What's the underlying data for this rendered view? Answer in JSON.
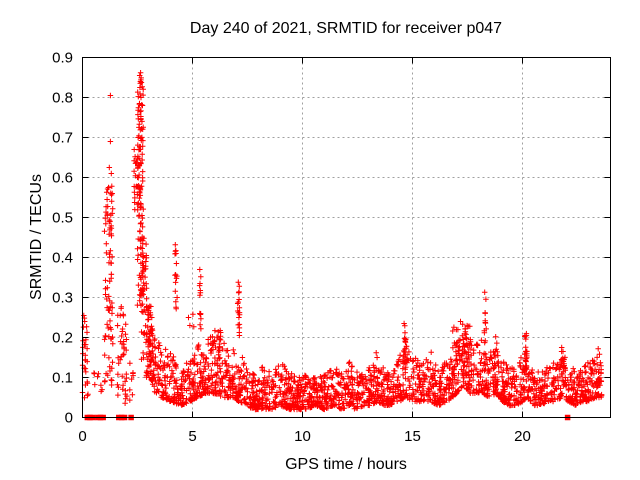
{
  "window": {
    "kind": "gnuplot-style plot image",
    "background": "#ffffff"
  },
  "chart_data": {
    "type": "scatter",
    "title": "Day 240 of 2021, SRMTID for receiver p047",
    "xlabel": "GPS time / hours",
    "ylabel": "SRMTID / TECUs",
    "xlim": [
      0,
      24
    ],
    "ylim": [
      0,
      0.9
    ],
    "xtick_values": [
      0,
      5,
      10,
      15,
      20
    ],
    "xtick_labels": [
      "0",
      "5",
      "10",
      "15",
      "20"
    ],
    "ytick_values": [
      0,
      0.1,
      0.2,
      0.3,
      0.4,
      0.5,
      0.6,
      0.7,
      0.8,
      0.9
    ],
    "ytick_labels": [
      "0",
      "0.1",
      "0.2",
      "0.3",
      "0.4",
      "0.5",
      "0.6",
      "0.7",
      "0.8",
      "0.9"
    ],
    "grid": true,
    "grid_color": "#a0a0a0",
    "frame_color": "#000000",
    "marker": {
      "shape": "plus",
      "color": "#ff0000",
      "size": 5.5
    },
    "zero_flag_marker": {
      "shape": "filled-square",
      "color": "#ff0000",
      "size": 5.5
    },
    "peak_point": {
      "t": 2.64,
      "value": 0.86
    },
    "zero_flag_times": [
      0.22,
      0.34,
      0.46,
      0.7,
      0.82,
      0.94,
      1.65,
      1.78,
      1.91,
      2.21,
      22.05
    ],
    "notable_points": [
      [
        0.06,
        0.255
      ],
      [
        0.1,
        0.24
      ],
      [
        1.27,
        0.805
      ],
      [
        1.27,
        0.69
      ],
      [
        1.22,
        0.625
      ],
      [
        1.31,
        0.61
      ],
      [
        1.18,
        0.575
      ],
      [
        1.35,
        0.56
      ],
      [
        1.12,
        0.545
      ],
      [
        2.6,
        0.855
      ],
      [
        2.64,
        0.862
      ],
      [
        2.63,
        0.84
      ],
      [
        2.61,
        0.825
      ],
      [
        2.66,
        0.8
      ],
      [
        2.59,
        0.785
      ],
      [
        2.62,
        0.765
      ],
      [
        2.65,
        0.745
      ],
      [
        2.35,
        0.67
      ],
      [
        2.39,
        0.652
      ],
      [
        3.0,
        0.275
      ],
      [
        3.08,
        0.262
      ],
      [
        3.15,
        0.25
      ],
      [
        4.22,
        0.432
      ],
      [
        4.25,
        0.41
      ],
      [
        4.27,
        0.385
      ],
      [
        4.23,
        0.357
      ],
      [
        4.3,
        0.3
      ],
      [
        4.26,
        0.272
      ],
      [
        4.82,
        0.25
      ],
      [
        4.88,
        0.23
      ],
      [
        5.02,
        0.258
      ],
      [
        5.06,
        0.227
      ],
      [
        5.33,
        0.37
      ],
      [
        5.34,
        0.335
      ],
      [
        5.36,
        0.312
      ],
      [
        5.33,
        0.26
      ],
      [
        5.38,
        0.222
      ],
      [
        7.08,
        0.338
      ],
      [
        7.1,
        0.312
      ],
      [
        7.12,
        0.295
      ],
      [
        7.09,
        0.262
      ],
      [
        7.11,
        0.25
      ],
      [
        7.13,
        0.205
      ],
      [
        13.35,
        0.162
      ],
      [
        13.39,
        0.15
      ],
      [
        14.62,
        0.235
      ],
      [
        14.66,
        0.212
      ],
      [
        14.7,
        0.196
      ],
      [
        14.73,
        0.178
      ],
      [
        15.85,
        0.163
      ],
      [
        17.18,
        0.24
      ],
      [
        17.28,
        0.233
      ],
      [
        17.4,
        0.222
      ],
      [
        18.28,
        0.313
      ],
      [
        18.3,
        0.262
      ],
      [
        18.32,
        0.236
      ],
      [
        18.27,
        0.212
      ],
      [
        18.78,
        0.202
      ],
      [
        18.83,
        0.186
      ],
      [
        20.12,
        0.205
      ],
      [
        20.15,
        0.196
      ],
      [
        21.78,
        0.175
      ],
      [
        21.84,
        0.165
      ],
      [
        23.44,
        0.172
      ],
      [
        23.5,
        0.158
      ]
    ],
    "event_columns": [
      [
        0.12,
        0.13,
        26,
        0.04,
        0.26
      ],
      [
        0.72,
        0.22,
        8,
        0.05,
        0.14
      ],
      [
        1.18,
        0.2,
        80,
        0.08,
        0.58
      ],
      [
        1.8,
        0.22,
        42,
        0.03,
        0.28
      ],
      [
        2.22,
        0.08,
        8,
        0.04,
        0.18
      ],
      [
        2.42,
        0.08,
        16,
        0.5,
        0.67
      ],
      [
        2.63,
        0.14,
        120,
        0.28,
        0.85
      ],
      [
        2.8,
        0.13,
        40,
        0.1,
        0.46
      ],
      [
        3.05,
        0.15,
        30,
        0.14,
        0.28
      ],
      [
        4.25,
        0.05,
        10,
        0.26,
        0.42
      ],
      [
        5.35,
        0.05,
        8,
        0.2,
        0.36
      ],
      [
        6.0,
        0.3,
        20,
        0.1,
        0.22
      ],
      [
        7.1,
        0.05,
        12,
        0.15,
        0.33
      ],
      [
        14.66,
        0.08,
        14,
        0.1,
        0.23
      ],
      [
        17.2,
        0.45,
        45,
        0.08,
        0.23
      ],
      [
        18.3,
        0.06,
        10,
        0.1,
        0.3
      ],
      [
        20.15,
        0.06,
        22,
        0.1,
        0.21
      ],
      [
        21.8,
        0.1,
        12,
        0.08,
        0.17
      ],
      [
        23.5,
        0.08,
        8,
        0.08,
        0.16
      ]
    ],
    "baseline_band": {
      "count": 2200,
      "t_range": [
        2.9,
        23.6
      ],
      "envelope": [
        [
          2.9,
          0.1,
          0.3
        ],
        [
          3.1,
          0.1,
          0.26
        ],
        [
          3.3,
          0.06,
          0.2
        ],
        [
          3.6,
          0.05,
          0.18
        ],
        [
          4.0,
          0.04,
          0.16
        ],
        [
          4.5,
          0.03,
          0.13
        ],
        [
          4.9,
          0.04,
          0.15
        ],
        [
          5.2,
          0.05,
          0.18
        ],
        [
          5.6,
          0.06,
          0.2
        ],
        [
          6.0,
          0.06,
          0.21
        ],
        [
          6.4,
          0.05,
          0.19
        ],
        [
          6.8,
          0.05,
          0.17
        ],
        [
          7.1,
          0.04,
          0.18
        ],
        [
          7.4,
          0.03,
          0.13
        ],
        [
          7.8,
          0.02,
          0.11
        ],
        [
          8.2,
          0.02,
          0.13
        ],
        [
          8.6,
          0.02,
          0.11
        ],
        [
          9.0,
          0.03,
          0.14
        ],
        [
          9.4,
          0.02,
          0.12
        ],
        [
          9.8,
          0.02,
          0.1
        ],
        [
          10.2,
          0.02,
          0.11
        ],
        [
          10.6,
          0.03,
          0.12
        ],
        [
          11.0,
          0.02,
          0.11
        ],
        [
          11.4,
          0.03,
          0.13
        ],
        [
          11.8,
          0.02,
          0.11
        ],
        [
          12.1,
          0.03,
          0.15
        ],
        [
          12.4,
          0.02,
          0.12
        ],
        [
          12.8,
          0.03,
          0.11
        ],
        [
          13.1,
          0.03,
          0.13
        ],
        [
          13.4,
          0.04,
          0.16
        ],
        [
          13.7,
          0.03,
          0.12
        ],
        [
          14.0,
          0.03,
          0.12
        ],
        [
          14.4,
          0.04,
          0.15
        ],
        [
          14.7,
          0.05,
          0.2
        ],
        [
          15.0,
          0.04,
          0.16
        ],
        [
          15.4,
          0.04,
          0.14
        ],
        [
          15.8,
          0.04,
          0.15
        ],
        [
          16.2,
          0.03,
          0.13
        ],
        [
          16.6,
          0.04,
          0.15
        ],
        [
          17.0,
          0.06,
          0.2
        ],
        [
          17.3,
          0.08,
          0.23
        ],
        [
          17.6,
          0.06,
          0.2
        ],
        [
          17.9,
          0.06,
          0.19
        ],
        [
          18.2,
          0.06,
          0.2
        ],
        [
          18.5,
          0.05,
          0.17
        ],
        [
          18.8,
          0.06,
          0.18
        ],
        [
          19.1,
          0.04,
          0.14
        ],
        [
          19.4,
          0.03,
          0.13
        ],
        [
          19.7,
          0.03,
          0.12
        ],
        [
          20.0,
          0.04,
          0.16
        ],
        [
          20.2,
          0.05,
          0.17
        ],
        [
          20.5,
          0.03,
          0.13
        ],
        [
          20.8,
          0.03,
          0.12
        ],
        [
          21.2,
          0.04,
          0.13
        ],
        [
          21.5,
          0.04,
          0.14
        ],
        [
          21.8,
          0.05,
          0.17
        ],
        [
          22.1,
          0.04,
          0.13
        ],
        [
          22.4,
          0.03,
          0.12
        ],
        [
          22.7,
          0.04,
          0.13
        ],
        [
          23.0,
          0.04,
          0.14
        ],
        [
          23.3,
          0.05,
          0.15
        ],
        [
          23.6,
          0.05,
          0.16
        ]
      ]
    }
  }
}
